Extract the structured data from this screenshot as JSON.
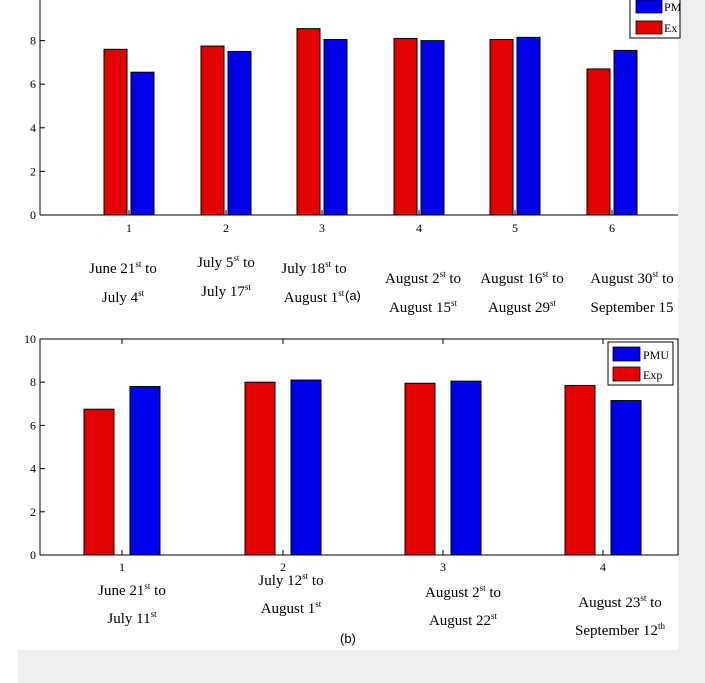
{
  "colors": {
    "exp": "#e30000",
    "pmu": "#0000f0",
    "edge": "#000000",
    "page_gray": "#eeeeee"
  },
  "chart_data": [
    {
      "type": "bar",
      "caption": "(a)",
      "categories": [
        "1",
        "2",
        "3",
        "4",
        "5",
        "6"
      ],
      "ylim": [
        0,
        10
      ],
      "yticks": [
        "0",
        "2",
        "4",
        "6",
        "8"
      ],
      "legend_position": "top-right",
      "series": [
        {
          "name": "Exp",
          "legend_label": "Ex",
          "values": [
            7.6,
            7.75,
            8.55,
            8.1,
            8.05,
            6.7
          ]
        },
        {
          "name": "PMU",
          "legend_label": "PM",
          "values": [
            6.55,
            7.5,
            8.05,
            8.0,
            8.15,
            7.55
          ]
        }
      ],
      "date_labels": [
        {
          "l1": "June 21",
          "s1": "st",
          "t1": " to",
          "l2": "July 4",
          "s2": "st",
          "t2": ""
        },
        {
          "l1": "July 5",
          "s1": "st",
          "t1": " to",
          "l2": "July 17",
          "s2": "st",
          "t2": ""
        },
        {
          "l1": "July 18",
          "s1": "st",
          "t1": " to",
          "l2": "August 1",
          "s2": "st",
          "t2": ""
        },
        {
          "l1": "August 2",
          "s1": "st",
          "t1": " to",
          "l2": "August 15",
          "s2": "st",
          "t2": ""
        },
        {
          "l1": "August 16",
          "s1": "st",
          "t1": " to",
          "l2": "August 29",
          "s2": "st",
          "t2": ""
        },
        {
          "l1": "August 30",
          "s1": "st",
          "t1": " to",
          "l2": "September 15",
          "s2": "",
          "t2": ""
        }
      ]
    },
    {
      "type": "bar",
      "caption": "(b)",
      "categories": [
        "1",
        "2",
        "3",
        "4"
      ],
      "ylim": [
        0,
        10
      ],
      "yticks": [
        "0",
        "2",
        "4",
        "6",
        "8",
        "10"
      ],
      "legend_position": "top-right",
      "series": [
        {
          "name": "Exp",
          "legend_label": "Exp",
          "values": [
            6.75,
            8.0,
            7.95,
            7.85
          ]
        },
        {
          "name": "PMU",
          "legend_label": "PMU",
          "values": [
            7.8,
            8.1,
            8.05,
            7.15
          ]
        }
      ],
      "date_labels": [
        {
          "l1": "June 21",
          "s1": "st",
          "t1": " to",
          "l2": "July 11",
          "s2": "st",
          "t2": ""
        },
        {
          "l1": "July 12",
          "s1": "st",
          "t1": " to",
          "l2": "August 1",
          "s2": "st",
          "t2": ""
        },
        {
          "l1": "August 2",
          "s1": "st",
          "t1": " to",
          "l2": "August 22",
          "s2": "st",
          "t2": ""
        },
        {
          "l1": "August 23",
          "s1": "st",
          "t1": " to",
          "l2": "September 12",
          "s2": "th",
          "t2": ""
        }
      ]
    }
  ]
}
